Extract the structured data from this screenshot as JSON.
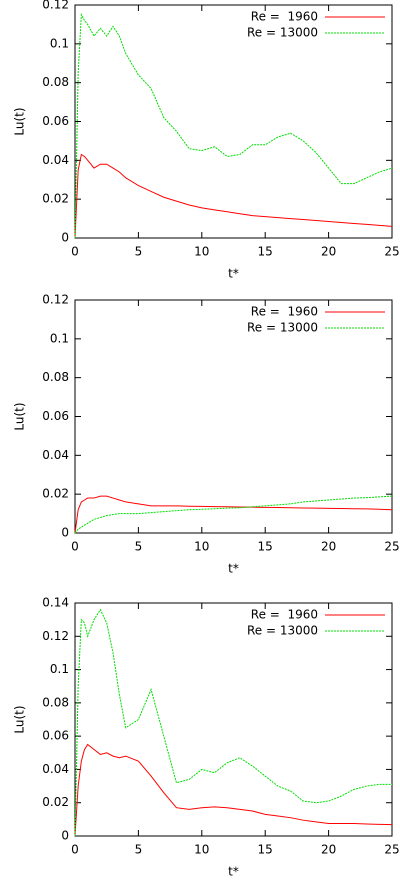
{
  "chart_data": [
    {
      "type": "line",
      "x_label": "t*",
      "y_label": "Lu(t)",
      "x": [
        0,
        0.25,
        0.5,
        0.75,
        1,
        1.5,
        2,
        2.5,
        3,
        3.5,
        4,
        5,
        6,
        7,
        8,
        9,
        10,
        11,
        12,
        13,
        14,
        15,
        16,
        17,
        18,
        19,
        20,
        21,
        22,
        23,
        24,
        25
      ],
      "xlim": [
        0,
        25
      ],
      "xticks": [
        0,
        5,
        10,
        15,
        20,
        25
      ],
      "ylim": [
        0,
        0.12
      ],
      "yticks": [
        0,
        0.02,
        0.04,
        0.06,
        0.08,
        0.1,
        0.12
      ],
      "series": [
        {
          "name": "Re =  1960",
          "color": "#ff0000",
          "values": [
            0,
            0.035,
            0.043,
            0.042,
            0.04,
            0.036,
            0.038,
            0.038,
            0.036,
            0.034,
            0.031,
            0.027,
            0.024,
            0.021,
            0.019,
            0.017,
            0.0155,
            0.0145,
            0.0135,
            0.0125,
            0.0115,
            0.011,
            0.0105,
            0.01,
            0.0095,
            0.009,
            0.0085,
            0.008,
            0.0075,
            0.007,
            0.0065,
            0.006
          ]
        },
        {
          "name": "Re = 13000",
          "color": "#00dd00",
          "values": [
            0,
            0.085,
            0.115,
            0.112,
            0.11,
            0.104,
            0.108,
            0.104,
            0.109,
            0.104,
            0.095,
            0.084,
            0.077,
            0.062,
            0.055,
            0.046,
            0.045,
            0.047,
            0.042,
            0.043,
            0.048,
            0.048,
            0.052,
            0.054,
            0.05,
            0.044,
            0.036,
            0.028,
            0.028,
            0.031,
            0.034,
            0.036
          ]
        }
      ]
    },
    {
      "type": "line",
      "x_label": "t*",
      "y_label": "Lu(t)",
      "x": [
        0,
        0.25,
        0.5,
        0.75,
        1,
        1.5,
        2,
        2.5,
        3,
        3.5,
        4,
        5,
        6,
        7,
        8,
        9,
        10,
        11,
        12,
        13,
        14,
        15,
        16,
        17,
        18,
        19,
        20,
        21,
        22,
        23,
        24,
        25
      ],
      "xlim": [
        0,
        25
      ],
      "xticks": [
        0,
        5,
        10,
        15,
        20,
        25
      ],
      "ylim": [
        0,
        0.12
      ],
      "yticks": [
        0,
        0.02,
        0.04,
        0.06,
        0.08,
        0.1,
        0.12
      ],
      "series": [
        {
          "name": "Re =  1960",
          "color": "#ff0000",
          "values": [
            0,
            0.012,
            0.016,
            0.017,
            0.018,
            0.018,
            0.019,
            0.019,
            0.018,
            0.017,
            0.016,
            0.015,
            0.014,
            0.014,
            0.014,
            0.0138,
            0.0137,
            0.0136,
            0.0135,
            0.0134,
            0.0133,
            0.0132,
            0.0131,
            0.013,
            0.0129,
            0.0128,
            0.0127,
            0.0126,
            0.0125,
            0.0124,
            0.0122,
            0.012
          ]
        },
        {
          "name": "Re = 13000",
          "color": "#00dd00",
          "values": [
            0,
            0.002,
            0.003,
            0.004,
            0.005,
            0.007,
            0.008,
            0.009,
            0.0095,
            0.01,
            0.01,
            0.01,
            0.0105,
            0.011,
            0.0115,
            0.012,
            0.0122,
            0.0125,
            0.0128,
            0.013,
            0.0135,
            0.014,
            0.0145,
            0.015,
            0.016,
            0.0165,
            0.017,
            0.0175,
            0.018,
            0.0182,
            0.0186,
            0.019
          ]
        }
      ]
    },
    {
      "type": "line",
      "x_label": "t*",
      "y_label": "Lu(t)",
      "x": [
        0,
        0.25,
        0.5,
        0.75,
        1,
        1.5,
        2,
        2.5,
        3,
        3.5,
        4,
        5,
        6,
        7,
        8,
        9,
        10,
        11,
        12,
        13,
        14,
        15,
        16,
        17,
        18,
        19,
        20,
        21,
        22,
        23,
        24,
        25
      ],
      "xlim": [
        0,
        25
      ],
      "xticks": [
        0,
        5,
        10,
        15,
        20,
        25
      ],
      "ylim": [
        0,
        0.14
      ],
      "yticks": [
        0,
        0.02,
        0.04,
        0.06,
        0.08,
        0.1,
        0.12,
        0.14
      ],
      "series": [
        {
          "name": "Re =  1960",
          "color": "#ff0000",
          "values": [
            0,
            0.03,
            0.045,
            0.052,
            0.055,
            0.052,
            0.049,
            0.05,
            0.048,
            0.047,
            0.048,
            0.045,
            0.036,
            0.026,
            0.017,
            0.016,
            0.017,
            0.0175,
            0.017,
            0.016,
            0.015,
            0.013,
            0.012,
            0.011,
            0.0095,
            0.0085,
            0.0075,
            0.0075,
            0.0075,
            0.0072,
            0.007,
            0.0068
          ]
        },
        {
          "name": "Re = 13000",
          "color": "#00dd00",
          "values": [
            0,
            0.09,
            0.13,
            0.128,
            0.12,
            0.13,
            0.136,
            0.128,
            0.11,
            0.085,
            0.065,
            0.07,
            0.088,
            0.06,
            0.032,
            0.034,
            0.04,
            0.038,
            0.044,
            0.047,
            0.042,
            0.036,
            0.03,
            0.027,
            0.021,
            0.02,
            0.021,
            0.024,
            0.028,
            0.03,
            0.031,
            0.031
          ]
        }
      ]
    }
  ]
}
